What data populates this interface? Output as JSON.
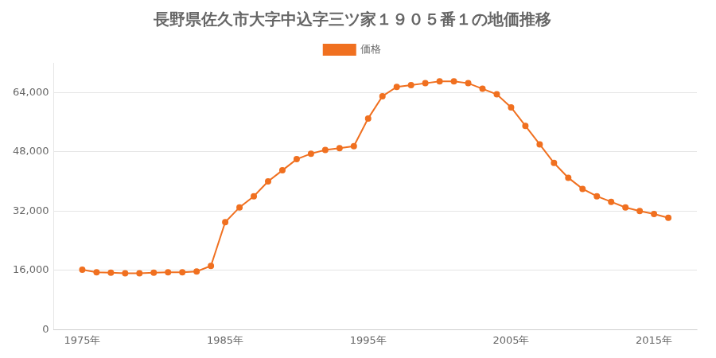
{
  "chart_data": {
    "type": "line",
    "title": "長野県佐久市大字中込字三ツ家１９０５番１の地価推移",
    "x": [
      1975,
      1976,
      1977,
      1978,
      1979,
      1980,
      1981,
      1982,
      1983,
      1984,
      1985,
      1986,
      1987,
      1988,
      1989,
      1990,
      1991,
      1992,
      1993,
      1994,
      1995,
      1996,
      1997,
      1998,
      1999,
      2000,
      2001,
      2002,
      2003,
      2004,
      2005,
      2006,
      2007,
      2008,
      2009,
      2010,
      2011,
      2012,
      2013,
      2014,
      2015,
      2016
    ],
    "series": [
      {
        "name": "価格",
        "color": "#f07020",
        "marker": "circle",
        "values": [
          16200,
          15500,
          15400,
          15200,
          15200,
          15400,
          15500,
          15500,
          15700,
          17200,
          29000,
          33000,
          36000,
          40000,
          43000,
          46000,
          47500,
          48500,
          49000,
          49500,
          57000,
          63000,
          65500,
          66000,
          66500,
          67000,
          67000,
          66500,
          65000,
          63500,
          60000,
          55000,
          50000,
          45000,
          41000,
          38000,
          36000,
          34500,
          33000,
          32000,
          31200,
          30200
        ]
      }
    ],
    "xlim": [
      1973,
      2018
    ],
    "xticks": [
      {
        "value": 1975,
        "label": "1975年"
      },
      {
        "value": 1985,
        "label": "1985年"
      },
      {
        "value": 1995,
        "label": "1995年"
      },
      {
        "value": 2005,
        "label": "2005年"
      },
      {
        "value": 2015,
        "label": "2015年"
      }
    ],
    "ylim": [
      0,
      72000
    ],
    "yticks": [
      0,
      {
        "value": 16000,
        "label": "16,000"
      },
      {
        "value": 32000,
        "label": "32,000"
      },
      {
        "value": 48000,
        "label": "48,000"
      },
      {
        "value": 64000,
        "label": "64,000"
      }
    ],
    "grid": "y",
    "legend": "top"
  }
}
